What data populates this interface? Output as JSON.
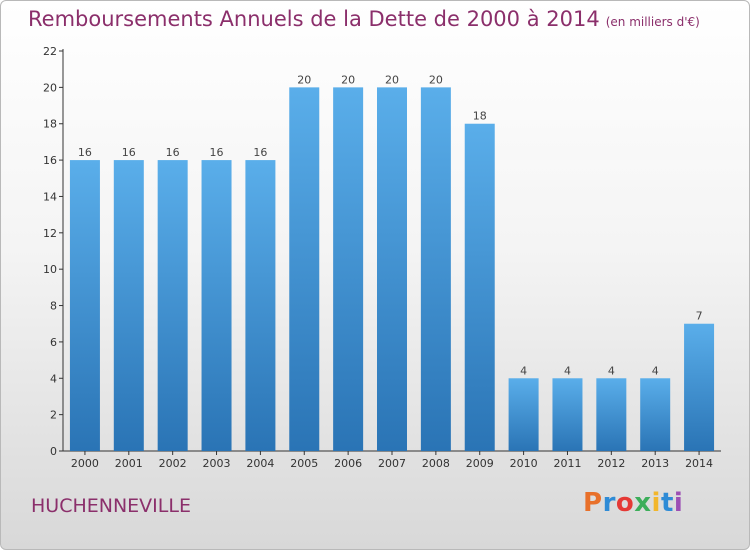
{
  "header": {
    "title": "Remboursements Annuels de la Dette de 2000 à 2014",
    "unit": "(en milliers d'€)"
  },
  "footer": {
    "commune": "HUCHENNEVILLE",
    "brand": "Proxiti",
    "brand_colors": [
      "#e8702a",
      "#2e8bd6",
      "#e53935",
      "#3cae5a",
      "#f2b62c",
      "#2e8bd6",
      "#9c4fb4"
    ]
  },
  "colors": {
    "title": "#8b2f6b",
    "bar_top": "#5aaeea",
    "bar_bottom": "#2a74b5",
    "axis": "#333333",
    "grid": "#d0d0d0"
  },
  "chart_data": {
    "type": "bar",
    "title": "Remboursements Annuels de la Dette de 2000 à 2014",
    "subtitle": "(en milliers d'€)",
    "categories": [
      "2000",
      "2001",
      "2002",
      "2003",
      "2004",
      "2005",
      "2006",
      "2007",
      "2008",
      "2009",
      "2010",
      "2011",
      "2012",
      "2013",
      "2014"
    ],
    "values": [
      16,
      16,
      16,
      16,
      16,
      20,
      20,
      20,
      20,
      18,
      4,
      4,
      4,
      4,
      7
    ],
    "ylim": [
      0,
      22
    ],
    "yticks": [
      0,
      2,
      4,
      6,
      8,
      10,
      12,
      14,
      16,
      18,
      20,
      22
    ],
    "grid": false,
    "data_labels": true
  }
}
